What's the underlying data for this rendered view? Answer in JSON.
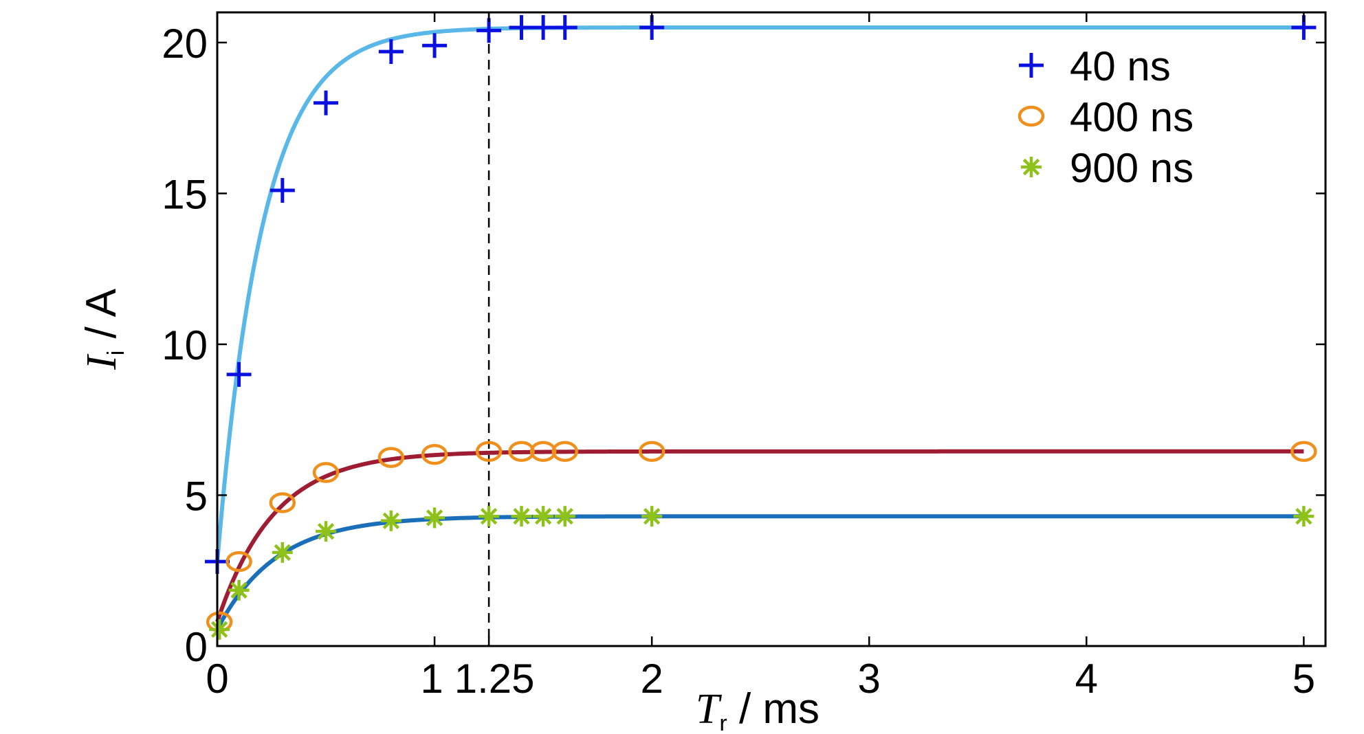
{
  "chart_data": {
    "type": "scatter",
    "title": "",
    "xlabel": {
      "symbol": "T",
      "subscript": "r",
      "unit": " / ms"
    },
    "ylabel": {
      "symbol": "I",
      "subscript": "i",
      "unit": " / A"
    },
    "xlim": [
      0,
      5.1
    ],
    "ylim": [
      0,
      21
    ],
    "x_ticks": [
      0,
      1,
      1.25,
      2,
      3,
      4,
      5
    ],
    "x_tick_labels": [
      "0",
      "1",
      "1.25",
      "2",
      "3",
      "4",
      "5"
    ],
    "y_ticks": [
      0,
      5,
      10,
      15,
      20
    ],
    "y_tick_labels": [
      "0",
      "5",
      "10",
      "15",
      "20"
    ],
    "grid": false,
    "legend_position": "top-right",
    "reference_line": {
      "x": 1.25,
      "style": "dashed"
    },
    "series": [
      {
        "name": "40 ns",
        "marker": "plus",
        "marker_color": "#0a10e0",
        "fit_color": "#5ab8e8",
        "x": [
          0,
          0.1,
          0.3,
          0.5,
          0.8,
          1.0,
          1.25,
          1.4,
          1.5,
          1.6,
          2.0,
          5.0
        ],
        "y": [
          2.8,
          9.0,
          15.1,
          18.0,
          19.7,
          19.9,
          20.4,
          20.5,
          20.5,
          20.5,
          20.5,
          20.5
        ],
        "fit": {
          "start": 2.8,
          "plateau": 20.5,
          "tau": 0.21
        }
      },
      {
        "name": "400 ns",
        "marker": "circle",
        "marker_color": "#f0901c",
        "fit_color": "#9e1d32",
        "x": [
          0.01,
          0.1,
          0.3,
          0.5,
          0.8,
          1.0,
          1.25,
          1.4,
          1.5,
          1.6,
          2.0,
          5.0
        ],
        "y": [
          0.8,
          2.8,
          4.75,
          5.75,
          6.25,
          6.35,
          6.45,
          6.45,
          6.45,
          6.45,
          6.45,
          6.45
        ],
        "fit": {
          "start": 0.8,
          "plateau": 6.45,
          "tau": 0.26
        }
      },
      {
        "name": "900 ns",
        "marker": "asterisk",
        "marker_color": "#8ec21b",
        "fit_color": "#1a6fba",
        "x": [
          0.01,
          0.1,
          0.3,
          0.5,
          0.8,
          1.0,
          1.25,
          1.4,
          1.5,
          1.6,
          2.0,
          5.0
        ],
        "y": [
          0.55,
          1.85,
          3.1,
          3.8,
          4.15,
          4.25,
          4.3,
          4.3,
          4.3,
          4.3,
          4.3,
          4.3
        ],
        "fit": {
          "start": 0.55,
          "plateau": 4.3,
          "tau": 0.27
        }
      }
    ]
  }
}
